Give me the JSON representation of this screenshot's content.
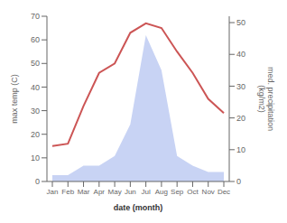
{
  "chart_data": {
    "type": "line",
    "categories": [
      "Jan",
      "Feb",
      "Mar",
      "Apr",
      "May",
      "Jun",
      "Jul",
      "Aug",
      "Sep",
      "Oct",
      "Nov",
      "Dec"
    ],
    "series": [
      {
        "type": "area",
        "color": "#aabbee",
        "axis": "y2",
        "values": [
          2,
          2,
          5,
          5,
          8,
          18,
          46,
          35,
          8,
          5,
          3,
          3
        ]
      },
      {
        "type": "line",
        "color": "#cc5555",
        "values": [
          15,
          16,
          32,
          46,
          50,
          63,
          67,
          65,
          55,
          46,
          35,
          29
        ]
      }
    ],
    "xlabel": "date (month)",
    "ylabel": "max temp (C)",
    "y2label": "med. precipitation\n(kg/m2)",
    "ylim": [
      0,
      70
    ],
    "yticks": [
      0,
      10,
      20,
      30,
      40,
      50,
      60,
      70
    ],
    "y2lim": [
      0,
      52
    ],
    "y2ticks": [
      0,
      10,
      20,
      30,
      40,
      50
    ],
    "grid": false
  }
}
